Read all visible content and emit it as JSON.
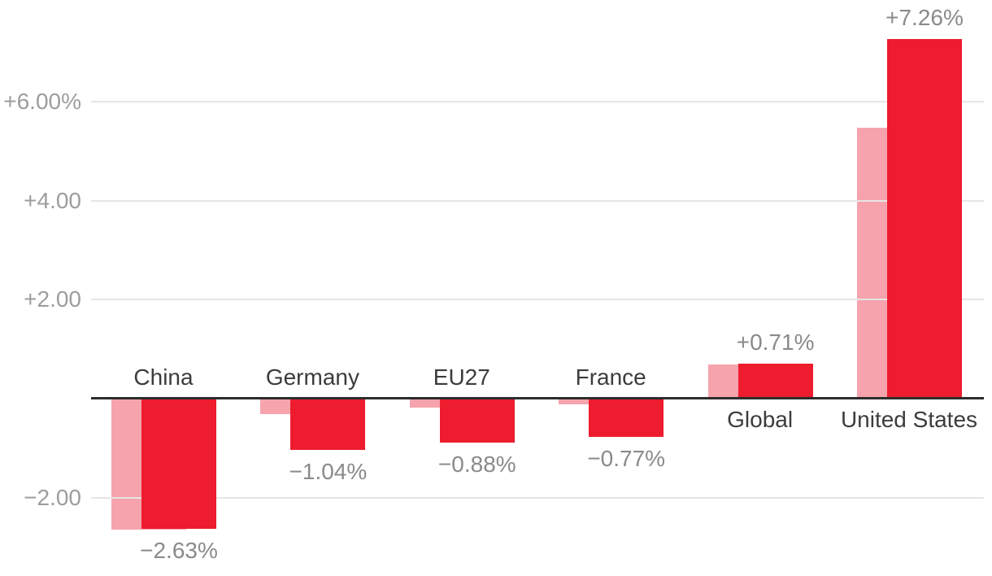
{
  "chart_data": {
    "type": "bar",
    "title": "",
    "xlabel": "",
    "ylabel": "",
    "grid": true,
    "legend": "none",
    "background": "#ffffff",
    "categories": [
      "China",
      "Germany",
      "EU27",
      "France",
      "Global",
      "United States"
    ],
    "series": [
      {
        "name": "light-series-unlabeled",
        "color": "#f6a3ae",
        "values_estimated": true,
        "values": [
          -2.65,
          -0.31,
          -0.18,
          -0.12,
          0.69,
          5.48
        ]
      },
      {
        "name": "dark-series-labeled",
        "color": "#ed1c2e",
        "values_estimated": false,
        "values": [
          -2.63,
          -1.04,
          -0.88,
          -0.77,
          0.71,
          7.26
        ]
      }
    ],
    "value_labels": [
      "−2.63%",
      "−1.04%",
      "−0.88%",
      "−0.77%",
      "+0.71%",
      "+7.26%"
    ],
    "y_ticks": [
      {
        "value": 6,
        "label": "+6.00%"
      },
      {
        "value": 4,
        "label": "+4.00"
      },
      {
        "value": 2,
        "label": "+2.00"
      },
      {
        "value": -2,
        "label": "−2.00"
      }
    ],
    "ylim": [
      -3.3,
      7.8
    ],
    "colors": {
      "grid": "#e5e5e5",
      "axis": "#2d2d2d",
      "category_label": "#3c3c3c",
      "value_label": "#8a8a8a",
      "tick_label": "#9d9d9d"
    }
  }
}
